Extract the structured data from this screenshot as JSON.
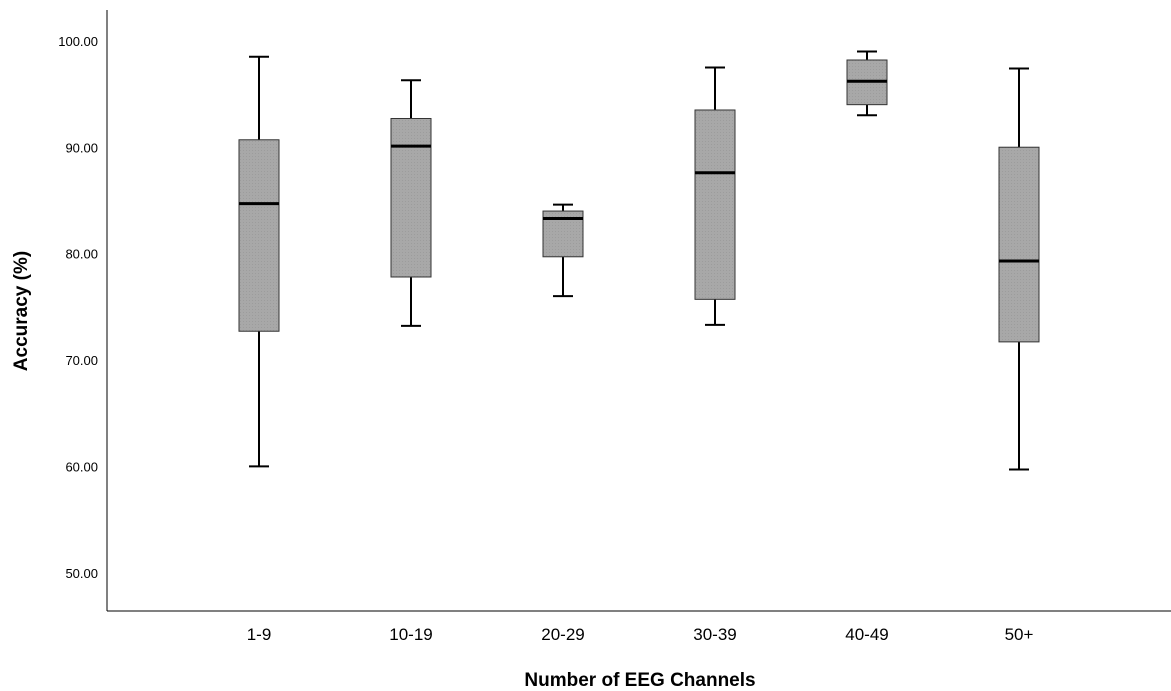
{
  "chart_data": {
    "type": "box",
    "xlabel": "Number of EEG Channels",
    "ylabel": "Accuracy (%)",
    "ylim": [
      46.5,
      103.0
    ],
    "yticks": [
      "50.00",
      "60.00",
      "70.00",
      "80.00",
      "90.00",
      "100.00"
    ],
    "categories": [
      "1-9",
      "10-19",
      "20-29",
      "30-39",
      "40-49",
      "50+"
    ],
    "boxes": [
      {
        "min": 60.1,
        "q1": 72.8,
        "median": 84.8,
        "q3": 90.8,
        "max": 98.6
      },
      {
        "min": 73.3,
        "q1": 77.9,
        "median": 90.2,
        "q3": 92.8,
        "max": 96.4
      },
      {
        "min": 76.1,
        "q1": 79.8,
        "median": 83.4,
        "q3": 84.1,
        "max": 84.7
      },
      {
        "min": 73.4,
        "q1": 75.8,
        "median": 87.7,
        "q3": 93.6,
        "max": 97.6
      },
      {
        "min": 93.1,
        "q1": 94.1,
        "median": 96.3,
        "q3": 98.3,
        "max": 99.1
      },
      {
        "min": 59.8,
        "q1": 71.8,
        "median": 79.4,
        "q3": 90.1,
        "max": 97.5
      }
    ],
    "box_color": "#a8a8a8",
    "grid": false,
    "legend": "none"
  }
}
